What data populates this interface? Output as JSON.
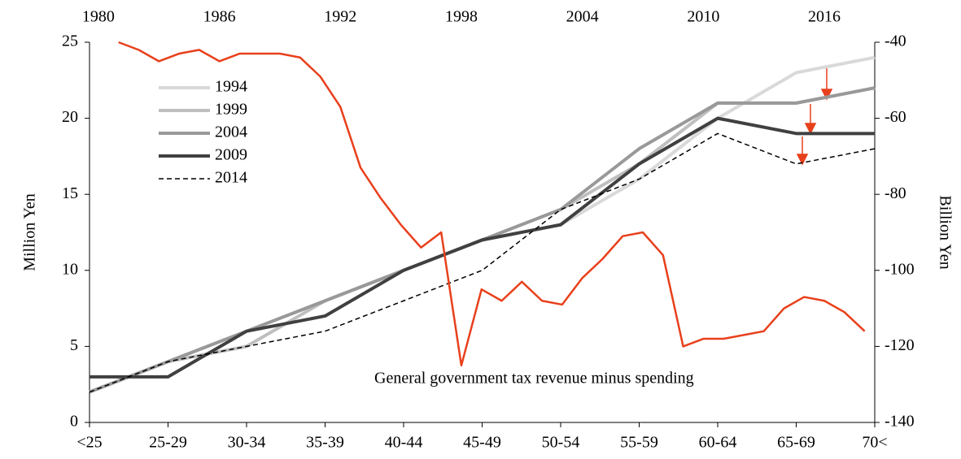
{
  "chart_data": {
    "type": "line",
    "y_label": "Million Yen",
    "y2_label": "Billion Yen",
    "categories": [
      "<25",
      "25-29",
      "30-34",
      "35-39",
      "40-44",
      "45-49",
      "50-54",
      "55-59",
      "60-64",
      "65-69",
      "70<"
    ],
    "ylim": [
      0,
      25
    ],
    "yticks": [
      0,
      5,
      10,
      15,
      20,
      25
    ],
    "y2lim": [
      -140,
      -40
    ],
    "y2ticks": [
      -140,
      -120,
      -100,
      -80,
      -60,
      -40
    ],
    "x2lim": [
      1979.56,
      2018.5
    ],
    "x2ticks": [
      1980,
      1986,
      1992,
      1998,
      2004,
      2010,
      2016
    ],
    "series": [
      {
        "name": "1994",
        "color": "#d9d9d9",
        "width": 4,
        "dash": false,
        "values": [
          2,
          4,
          6,
          8,
          10,
          12,
          13,
          16,
          20,
          23,
          24
        ]
      },
      {
        "name": "1999",
        "color": "#bfbfbf",
        "width": 4,
        "dash": false,
        "values": [
          2,
          4,
          5,
          8,
          10,
          12,
          14,
          17,
          21,
          21,
          22
        ]
      },
      {
        "name": "2004",
        "color": "#999999",
        "width": 4,
        "dash": false,
        "values": [
          2,
          4,
          6,
          8,
          10,
          12,
          14,
          18,
          21,
          21,
          22
        ]
      },
      {
        "name": "2009",
        "color": "#404040",
        "width": 4,
        "dash": false,
        "values": [
          3,
          3,
          6,
          7,
          10,
          12,
          13,
          17,
          20,
          19,
          19
        ]
      },
      {
        "name": "2014",
        "color": "#000000",
        "width": 1.5,
        "dash": true,
        "values": [
          2,
          4,
          5,
          6,
          8,
          10,
          14,
          16,
          19,
          17,
          18
        ]
      },
      {
        "name": "General government tax revenue minus spending",
        "color": "#e8401c",
        "width": 2.5,
        "dash": false,
        "axis": "y2",
        "x": [
          1981,
          1982,
          1983,
          1984,
          1985,
          1986,
          1987,
          1988,
          1989,
          1990,
          1991,
          1992,
          1993,
          1994,
          1995,
          1996,
          1997,
          1998,
          1999,
          2000,
          2001,
          2002,
          2003,
          2004,
          2005,
          2006,
          2007,
          2008,
          2009,
          2010,
          2011,
          2012,
          2013,
          2014,
          2015,
          2016,
          2017,
          2018
        ],
        "values": [
          -40,
          -42,
          -45,
          -43,
          -42,
          -45,
          -43,
          -43,
          -43,
          -44,
          -49,
          -57,
          -73,
          -81,
          -88,
          -94,
          -90,
          -125,
          -105,
          -108,
          -103,
          -108,
          -109,
          -102,
          -97,
          -91,
          -90,
          -96,
          -120,
          -118,
          -118,
          -117,
          -116,
          -110,
          -107,
          -108,
          -111,
          -116
        ]
      }
    ]
  }
}
